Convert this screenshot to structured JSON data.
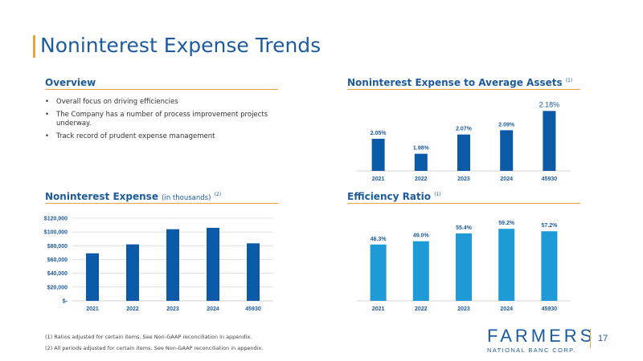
{
  "slide": {
    "title": "Noninterest Expense Trends",
    "page_number": "17",
    "accent_color": "#e8a33a",
    "brand_color": "#1d5b9e"
  },
  "overview": {
    "heading": "Overview",
    "bullets": [
      "Overall focus on driving efficiencies",
      "The Company has a number of process improvement projects underway.",
      "Track record of prudent expense management"
    ]
  },
  "footnotes": [
    "(1) Ratios adjusted for certain items. See Non-GAAP reconciliation in appendix.",
    "(2) All periods adjusted for certain items. See Non-GAAP reconciliation in appendix."
  ],
  "logo": {
    "word": "FARMERS",
    "tagline": "NATIONAL BANC CORP."
  },
  "chart_data": [
    {
      "id": "avg_assets",
      "type": "bar",
      "title": "Noninterest Expense to Average Assets",
      "title_note": "(1)",
      "categories": [
        "2021",
        "2022",
        "2023",
        "2024",
        "45930"
      ],
      "values": [
        2.05,
        1.98,
        2.07,
        2.09,
        2.18
      ],
      "data_labels": [
        "2.05%",
        "1.98%",
        "2.07%",
        "2.09%",
        "2.18%"
      ],
      "ylim": [
        1.9,
        2.2
      ],
      "bar_color": "#0a5aa8",
      "grid": false
    },
    {
      "id": "nie",
      "type": "bar",
      "title": "Noninterest Expense",
      "title_sub": "(in thousands)",
      "title_note": "(2)",
      "categories": [
        "2021",
        "2022",
        "2023",
        "2024",
        "45930"
      ],
      "values": [
        69000,
        82000,
        104000,
        106000,
        83500
      ],
      "ylim": [
        0,
        120000
      ],
      "y_ticks": [
        0,
        20000,
        40000,
        60000,
        80000,
        100000,
        120000
      ],
      "y_tick_labels": [
        "$-",
        "$20,000",
        "$40,000",
        "$60,000",
        "$80,000",
        "$100,000",
        "$120,000"
      ],
      "bar_color": "#0a5aa8",
      "grid": true
    },
    {
      "id": "efficiency",
      "type": "bar",
      "title": "Efficiency Ratio",
      "title_note": "(1)",
      "categories": [
        "2021",
        "2022",
        "2023",
        "2024",
        "45930"
      ],
      "values": [
        46.3,
        49.0,
        55.4,
        59.2,
        57.2
      ],
      "data_labels": [
        "46.3%",
        "49.0%",
        "55.4%",
        "59.2%",
        "57.2%"
      ],
      "ylim": [
        0,
        60
      ],
      "bar_color": "#1e9ad6",
      "grid": false
    }
  ]
}
